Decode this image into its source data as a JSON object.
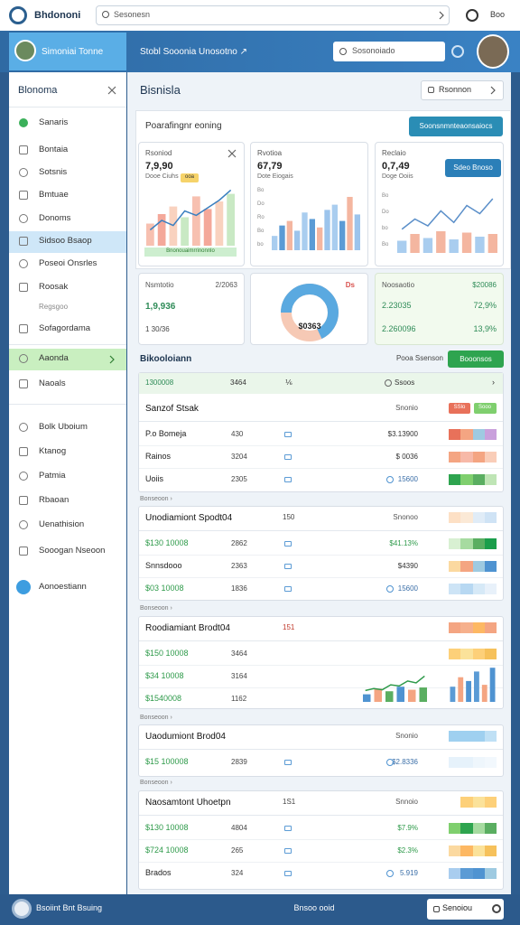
{
  "topbar": {
    "brand": "Bhdononi",
    "search": "Sesonesn",
    "user": "Boo"
  },
  "header": {
    "sidebar_title": "Simoniai Tonne",
    "breadcrumb": "Stobl Sooonia Unosotno ↗",
    "search": "Sosonoiado"
  },
  "sidebar": {
    "title": "Blonoma",
    "items": [
      "Sanaris",
      "Bontaia",
      "Sotsnis",
      "Bmtuae",
      "Donoms",
      "Sidsoo Bsaop",
      "Poseoi Onsrles",
      "Roosak",
      "Regsgoo",
      "Sofagordama",
      "Aaonda",
      "Naoals",
      "Bolk Uboium",
      "Ktanog",
      "Patmia",
      "Rbaoan",
      "Uenathision",
      "Sooogan Nseoon",
      "Aonoestiann"
    ]
  },
  "page": {
    "title": "Bisnisla",
    "filter": "Rsonnon"
  },
  "overview": {
    "title": "Poarafingnr eoning",
    "button": "Soonsnmnteaonsaiocs"
  },
  "cards": [
    {
      "title": "Rsoniod",
      "value": "7,9,90",
      "sub": "Dooe Ciuhs",
      "tag": "ooa",
      "foot": "Bnonouaimrrinonnlo",
      "bars": [
        35,
        50,
        62,
        45,
        78,
        58,
        70,
        82
      ],
      "line": [
        25,
        40,
        32,
        55,
        48,
        60,
        72,
        88
      ]
    },
    {
      "title": "Rvotioa",
      "value": "67,79",
      "sub": "Dote Eiogais",
      "yaxis": [
        "Bo",
        "Do",
        "Ro",
        "Bo",
        "bo"
      ],
      "bars": [
        22,
        38,
        45,
        30,
        58,
        48,
        35,
        62,
        70,
        45,
        82,
        55
      ]
    },
    {
      "title": "Reclaio",
      "value": "0,7,49",
      "sub": "Doge Ooiis",
      "button": "Sdeo Bnoso",
      "yaxis": [
        "Bo",
        "Do",
        "bo",
        "Bo"
      ],
      "line": [
        35,
        50,
        40,
        62,
        45,
        70,
        58,
        80
      ],
      "bars": [
        18,
        28,
        22,
        32,
        20,
        30,
        24,
        28
      ]
    }
  ],
  "stats": [
    {
      "title": "Nsmtotio",
      "date": "2/2063",
      "value": "1,9,936",
      "sub": "1 30/36"
    },
    {
      "tag": "Ds",
      "value": "$0363",
      "gauge": 68
    },
    {
      "title": "Noosaotio",
      "value": "$20086",
      "rows": [
        [
          "2.23035",
          "72,9%"
        ],
        [
          "2.260096",
          "13,9%"
        ]
      ]
    }
  ],
  "section": {
    "title": "Bikooloiann",
    "link": "Pooa Ssenson",
    "button": "Booonsos"
  },
  "tables": [
    {
      "header": [
        "1300008",
        "3464",
        "⅙",
        "Ssoos",
        "›"
      ],
      "title": "Sanzof Stsak",
      "right": "Snonio",
      "tags": [
        "SSlo",
        "Sooo"
      ],
      "rows": [
        [
          "P.o Bomeja",
          "430",
          "$3.13900"
        ],
        [
          "Rainos",
          "3204",
          "$ 0036"
        ],
        [
          "Uoiis",
          "2305",
          "15600"
        ]
      ]
    },
    {
      "label": "Bonseoon ›",
      "title": "Unodiamiont Spodt04",
      "num": "150",
      "right": "Snonoo",
      "rows": [
        [
          "$130 10008",
          "2862",
          "$41.13%"
        ],
        [
          "Snnsdooo",
          "2363",
          "$4390"
        ],
        [
          "$03 10008",
          "1836",
          "15600"
        ]
      ]
    },
    {
      "label": "Bonseoon ›",
      "title": "Roodiamiant Brodt04",
      "num": "151",
      "rows": [
        [
          "$150 10008",
          "3464"
        ],
        [
          "$34 10008",
          "3164"
        ],
        [
          "$1540008",
          "1162"
        ]
      ],
      "line": [
        30,
        35,
        32,
        45,
        42,
        55,
        50,
        68
      ],
      "bars": [
        20,
        35,
        28,
        40,
        32,
        38
      ],
      "bars_right": [
        40,
        65,
        55,
        80,
        45,
        90
      ]
    },
    {
      "label": "Bonseoon ›",
      "title": "Uaodumiont Brod04",
      "right": "Snonio",
      "rows": [
        [
          "$15 100008",
          "2839",
          "$2.8336"
        ]
      ]
    },
    {
      "label": "Bonseoon ›",
      "title": "Naosamtont Uhoetpn",
      "num": "1S1",
      "right": "Snnoio",
      "rows": [
        [
          "$130 10008",
          "4804",
          "$7.9%"
        ],
        [
          "$724 10008",
          "265",
          "$2.3%"
        ],
        [
          "Brados",
          "324",
          "5.919"
        ]
      ]
    }
  ],
  "footer": {
    "left": "Bsoiint Bnt Bsuing",
    "center": "Bnsoo ooid",
    "button": "Senoiou"
  }
}
